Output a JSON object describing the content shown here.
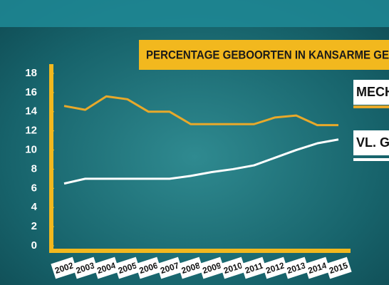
{
  "chart_data": {
    "type": "line",
    "title": "PERCENTAGE GEBOORTEN IN KANSARME GE",
    "categories": [
      "2002",
      "2003",
      "2004",
      "2005",
      "2006",
      "2007",
      "2008",
      "2009",
      "2010",
      "2011",
      "2012",
      "2013",
      "2014",
      "2015"
    ],
    "series": [
      {
        "name": "MECH",
        "color": "#e8a92a",
        "values": [
          14.6,
          14.2,
          15.6,
          15.3,
          14.0,
          14.0,
          12.7,
          12.7,
          12.7,
          12.7,
          13.4,
          13.6,
          12.6,
          12.6
        ]
      },
      {
        "name": "VL. GE",
        "color": "#ffffff",
        "values": [
          6.5,
          7.0,
          7.0,
          7.0,
          7.0,
          7.0,
          7.3,
          7.7,
          8.0,
          8.4,
          9.2,
          10.0,
          10.7,
          11.1
        ]
      }
    ],
    "ylim": [
      0,
      18
    ],
    "yticks": [
      0,
      2,
      4,
      6,
      8,
      10,
      12,
      14,
      16,
      18
    ],
    "grid": false
  }
}
